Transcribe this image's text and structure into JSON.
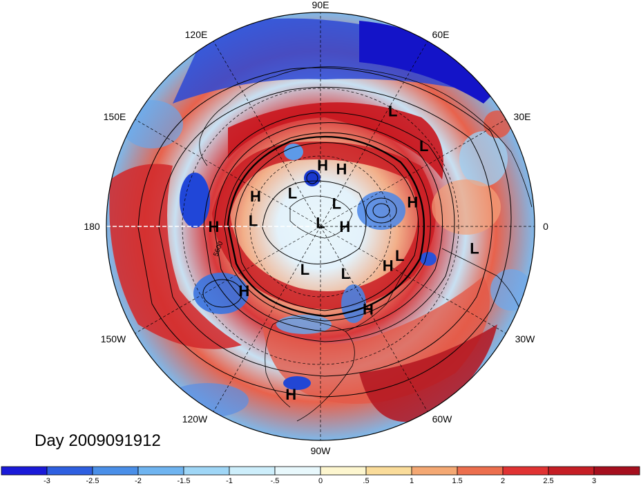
{
  "map": {
    "projection": "north-polar-stereographic",
    "longitude_labels": [
      "90E",
      "60E",
      "30E",
      "0",
      "30W",
      "60W",
      "90W",
      "120W",
      "150W",
      "180",
      "150E",
      "120E"
    ],
    "contour_labels": [
      "5600"
    ],
    "pressure_centers": [
      {
        "label": "H",
        "lon": 88,
        "lat": 58
      },
      {
        "label": "H",
        "lon": 70,
        "lat": 58
      },
      {
        "label": "L",
        "lon": 58,
        "lat": 25
      },
      {
        "label": "L",
        "lon": 38,
        "lat": 27
      },
      {
        "label": "H",
        "lon": 15,
        "lat": 42
      },
      {
        "label": "L",
        "lon": -8,
        "lat": 18
      },
      {
        "label": "H",
        "lon": -30,
        "lat": 50
      },
      {
        "label": "L",
        "lon": -62,
        "lat": 62
      },
      {
        "label": "H",
        "lon": -60,
        "lat": 42
      },
      {
        "label": "L",
        "lon": -110,
        "lat": 66
      },
      {
        "label": "L",
        "lon": 130,
        "lat": 67
      },
      {
        "label": "H",
        "lon": 0,
        "lat": 77
      },
      {
        "label": "L",
        "lon": 90,
        "lat": 88
      },
      {
        "label": "L",
        "lon": 55,
        "lat": 75
      },
      {
        "label": "H",
        "lon": 155,
        "lat": 53
      },
      {
        "label": "L",
        "lon": 175,
        "lat": 55
      },
      {
        "label": "H",
        "lon": 180,
        "lat": 37
      },
      {
        "label": "H",
        "lon": -140,
        "lat": 40
      },
      {
        "label": "H",
        "lon": -100,
        "lat": 13
      },
      {
        "label": "L",
        "lon": -20,
        "lat": 47
      }
    ]
  },
  "title": "Day 2009091912",
  "colorbar": {
    "ticks": [
      "-3",
      "-2.5",
      "-2",
      "-1.5",
      "-1",
      "-.5",
      "0",
      ".5",
      "1",
      "1.5",
      "2",
      "2.5",
      "3"
    ],
    "colors": [
      "#1a1ad8",
      "#2e5fe0",
      "#4a8fe8",
      "#6fb4f0",
      "#9fd6f6",
      "#cdeefb",
      "#e8f8fc",
      "#fdf6cf",
      "#fadc9a",
      "#f4a873",
      "#ec6f4e",
      "#e03333",
      "#c51e25",
      "#a50f1e"
    ]
  }
}
